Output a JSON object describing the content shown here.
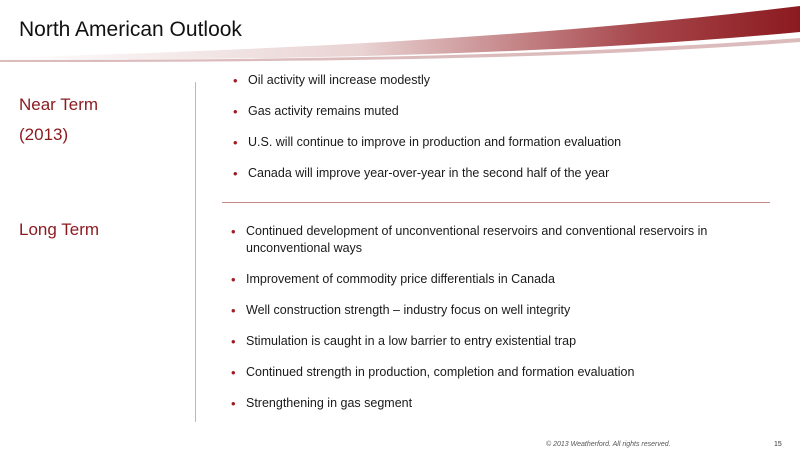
{
  "slide": {
    "title": "North American Outlook",
    "near_term": {
      "label_line1": "Near Term",
      "label_line2": "(2013)",
      "bullets": [
        "Oil activity will increase modestly",
        "Gas activity remains muted",
        "U.S. will continue to improve in production and formation evaluation",
        "Canada will improve year-over-year in the second half of the year"
      ]
    },
    "long_term": {
      "label": "Long Term",
      "bullets": [
        "Continued development of unconventional reservoirs and conventional reservoirs in unconventional ways",
        "Improvement of commodity price differentials in Canada",
        "Well construction strength – industry focus on well integrity",
        "Stimulation is caught in a low barrier to entry existential trap",
        "Continued strength in production, completion and formation evaluation",
        "Strengthening in gas segment"
      ]
    },
    "footer": {
      "copyright": "© 2013 Weatherford. All rights reserved.",
      "page_number": "15"
    },
    "colors": {
      "accent": "#8b1a1f",
      "bullet": "#a01c22"
    }
  }
}
